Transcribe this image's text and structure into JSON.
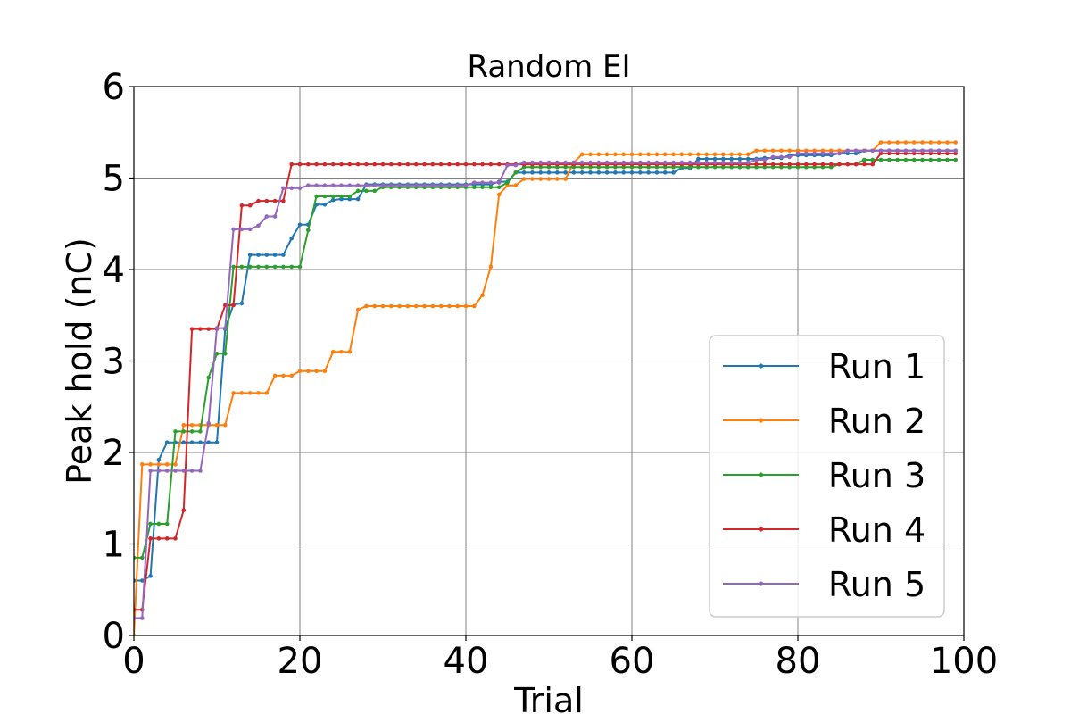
{
  "chart_data": {
    "type": "line",
    "title": "Random EI",
    "xlabel": "Trial",
    "ylabel": "Peak hold (nC)",
    "xlim": [
      0,
      100
    ],
    "ylim": [
      0,
      6
    ],
    "xticks": [
      "0",
      "20",
      "40",
      "60",
      "80",
      "100"
    ],
    "yticks": [
      "0",
      "1",
      "2",
      "3",
      "4",
      "5",
      "6"
    ],
    "grid": true,
    "legend_position": "lower-right",
    "series": [
      {
        "name": "Run 1",
        "color": "#1f77b4",
        "steps": [
          [
            0,
            0.6
          ],
          [
            2,
            0.65
          ],
          [
            3,
            1.92
          ],
          [
            4,
            2.11
          ],
          [
            11,
            3.35
          ],
          [
            12,
            3.62
          ],
          [
            13,
            3.63
          ],
          [
            14,
            4.16
          ],
          [
            19,
            4.34
          ],
          [
            20,
            4.49
          ],
          [
            22,
            4.71
          ],
          [
            24,
            4.76
          ],
          [
            25,
            4.77
          ],
          [
            28,
            4.93
          ],
          [
            44,
            4.96
          ],
          [
            46,
            5.06
          ],
          [
            66,
            5.11
          ],
          [
            68,
            5.21
          ],
          [
            76,
            5.22
          ],
          [
            79,
            5.25
          ],
          [
            85,
            5.27
          ],
          [
            88,
            5.3
          ]
        ]
      },
      {
        "name": "Run 2",
        "color": "#ff7f0e",
        "steps": [
          [
            0,
            0.0
          ],
          [
            1,
            1.87
          ],
          [
            6,
            2.3
          ],
          [
            12,
            2.65
          ],
          [
            17,
            2.84
          ],
          [
            20,
            2.89
          ],
          [
            24,
            3.1
          ],
          [
            27,
            3.56
          ],
          [
            28,
            3.6
          ],
          [
            42,
            3.72
          ],
          [
            43,
            4.03
          ],
          [
            44,
            4.82
          ],
          [
            45,
            4.92
          ],
          [
            47,
            4.99
          ],
          [
            53,
            5.17
          ],
          [
            54,
            5.26
          ],
          [
            75,
            5.3
          ],
          [
            90,
            5.39
          ]
        ]
      },
      {
        "name": "Run 3",
        "color": "#2ca02c",
        "steps": [
          [
            0,
            0.85
          ],
          [
            2,
            1.22
          ],
          [
            5,
            2.23
          ],
          [
            9,
            2.82
          ],
          [
            10,
            3.08
          ],
          [
            12,
            4.03
          ],
          [
            21,
            4.43
          ],
          [
            22,
            4.8
          ],
          [
            27,
            4.86
          ],
          [
            30,
            4.9
          ],
          [
            45,
            4.95
          ],
          [
            46,
            5.06
          ],
          [
            47,
            5.12
          ],
          [
            85,
            5.15
          ],
          [
            88,
            5.2
          ]
        ]
      },
      {
        "name": "Run 4",
        "color": "#d62728",
        "steps": [
          [
            0,
            0.28
          ],
          [
            2,
            1.06
          ],
          [
            6,
            1.37
          ],
          [
            7,
            3.35
          ],
          [
            11,
            3.61
          ],
          [
            13,
            4.7
          ],
          [
            15,
            4.75
          ],
          [
            19,
            5.15
          ],
          [
            90,
            5.27
          ]
        ]
      },
      {
        "name": "Run 5",
        "color": "#9467bd",
        "steps": [
          [
            0,
            0.19
          ],
          [
            2,
            1.8
          ],
          [
            9,
            2.32
          ],
          [
            10,
            3.36
          ],
          [
            12,
            4.44
          ],
          [
            15,
            4.48
          ],
          [
            16,
            4.58
          ],
          [
            18,
            4.89
          ],
          [
            21,
            4.92
          ],
          [
            41,
            4.95
          ],
          [
            45,
            5.14
          ],
          [
            47,
            5.17
          ],
          [
            75,
            5.2
          ],
          [
            77,
            5.23
          ],
          [
            80,
            5.27
          ],
          [
            86,
            5.3
          ]
        ]
      }
    ]
  }
}
